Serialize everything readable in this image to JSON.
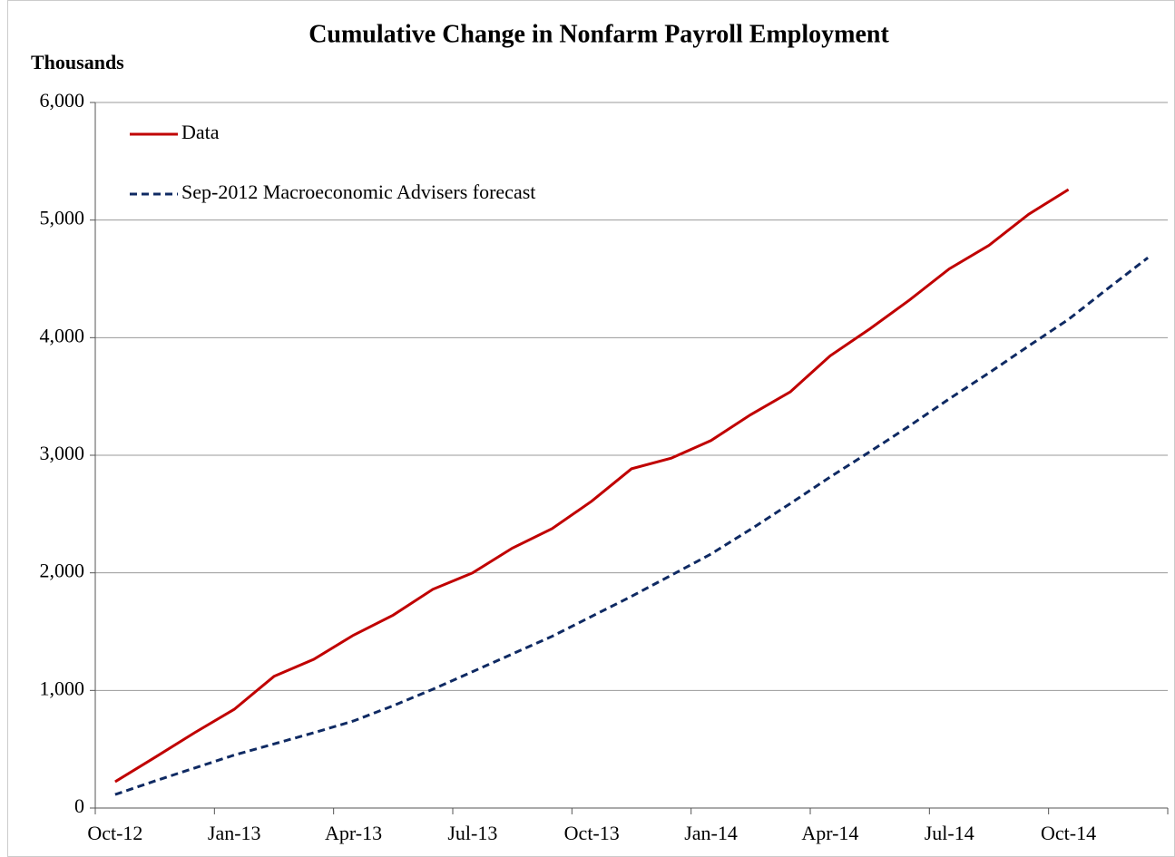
{
  "chart_data": {
    "type": "line",
    "title": "Cumulative Change in Nonfarm Payroll Employment",
    "y_label": "Thousands",
    "categories": [
      "Oct-12",
      null,
      null,
      "Jan-13",
      null,
      null,
      "Apr-13",
      null,
      null,
      "Jul-13",
      null,
      null,
      "Oct-13",
      null,
      null,
      "Jan-14",
      null,
      null,
      "Apr-14",
      null,
      null,
      "Jul-14",
      null,
      null,
      "Oct-14",
      null,
      null
    ],
    "series": [
      {
        "name": "Data",
        "color": "#c00000",
        "dash": false,
        "values": [
          224,
          430,
          640,
          840,
          1120,
          1265,
          1470,
          1640,
          1860,
          2000,
          2210,
          2375,
          2610,
          2885,
          2975,
          3125,
          3345,
          3540,
          3845,
          4075,
          4320,
          4585,
          4785,
          5050,
          5260,
          null,
          null
        ]
      },
      {
        "name": "Sep-2012 Macroeconomic Advisers forecast",
        "color": "#0f2a63",
        "dash": true,
        "values": [
          115,
          230,
          340,
          450,
          545,
          640,
          740,
          870,
          1010,
          1160,
          1310,
          1460,
          1630,
          1800,
          1980,
          2160,
          2370,
          2590,
          2815,
          3030,
          3250,
          3480,
          3700,
          3930,
          4155,
          4420,
          4680
        ]
      }
    ],
    "ylim": [
      0,
      6000
    ],
    "yticks": [
      0,
      {
        "value": 1000,
        "label": "1,000"
      },
      {
        "value": 2000,
        "label": "2,000"
      },
      {
        "value": 3000,
        "label": "3,000"
      },
      {
        "value": 4000,
        "label": "4,000"
      },
      {
        "value": 5000,
        "label": "5,000"
      },
      {
        "value": 6000,
        "label": "6,000"
      }
    ],
    "grid": true,
    "legend": "upper-left"
  }
}
